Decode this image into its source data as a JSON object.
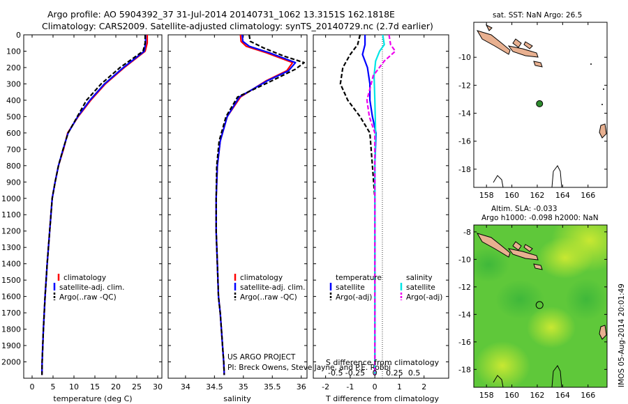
{
  "figure": {
    "title_line1": "Argo profile: AO 5904392_37 31-Jul-2014 20140731_1062 13.3151S 162.1818E",
    "title_line2": "Climatology: CARS2009. Satellite-adjusted climatology: synTS_20140729.nc (2.7d earlier)",
    "credit_line1": "US ARGO PROJECT",
    "credit_line2": "PI: Breck Owens, Steve Jayne, and P.E. Robbi",
    "timestamp": "IMOS 05-Aug-2014 20:01:49"
  },
  "colors": {
    "climatology": "#ff0000",
    "satellite": "#0000ff",
    "argo": "#000000",
    "sal_sat": "#00e5e5",
    "sal_argo": "#ee00ee",
    "land": "#e8b090",
    "float": "#2e8b2e"
  },
  "chart_data": [
    {
      "id": "temperature-profile",
      "type": "line",
      "xlabel": "temperature (deg C)",
      "ylabel": "",
      "xlim": [
        -2,
        31
      ],
      "ylim": [
        2100,
        0
      ],
      "xticks": [
        "0",
        "5",
        "10",
        "15",
        "20",
        "25",
        "30"
      ],
      "xtick_values": [
        0,
        5,
        10,
        15,
        20,
        25,
        30
      ],
      "yticks": [
        "0",
        "100",
        "200",
        "300",
        "400",
        "500",
        "600",
        "700",
        "800",
        "900",
        "1000",
        "1100",
        "1200",
        "1300",
        "1400",
        "1500",
        "1600",
        "1700",
        "1800",
        "1900",
        "2000"
      ],
      "ytick_values": [
        0,
        100,
        200,
        300,
        400,
        500,
        600,
        700,
        800,
        900,
        1000,
        1100,
        1200,
        1300,
        1400,
        1500,
        1600,
        1700,
        1800,
        1900,
        2000
      ],
      "legend": [
        "climatology",
        "satellite-adj. clim.",
        "Argo(..raw -QC)"
      ],
      "series": [
        {
          "name": "climatology",
          "style": "solid",
          "x": [
            27.5,
            27.5,
            27.0,
            22.0,
            17.5,
            14.0,
            11.0,
            8.5,
            7.5,
            6.3,
            5.5,
            4.8,
            4.2,
            3.6,
            3.1,
            2.7,
            2.4,
            2.35
          ],
          "y": [
            0,
            50,
            100,
            200,
            300,
            400,
            500,
            600,
            700,
            800,
            900,
            1000,
            1200,
            1400,
            1600,
            1800,
            2000,
            2080
          ]
        },
        {
          "name": "satellite",
          "style": "solid",
          "x": [
            27.1,
            27.1,
            26.8,
            21.8,
            17.3,
            13.8,
            10.9,
            8.6,
            7.4,
            6.3,
            5.5,
            4.8,
            4.2,
            3.6,
            3.1,
            2.7,
            2.4,
            2.35
          ],
          "y": [
            0,
            50,
            100,
            200,
            300,
            400,
            500,
            600,
            700,
            800,
            900,
            1000,
            1200,
            1400,
            1600,
            1800,
            2000,
            2080
          ]
        },
        {
          "name": "Argo",
          "style": "dashed",
          "x": [
            27.0,
            27.0,
            26.5,
            21.0,
            16.5,
            13.0,
            10.8,
            8.6,
            7.4,
            6.3,
            5.5,
            4.8,
            4.2,
            3.6,
            3.1,
            2.7,
            2.4,
            2.35
          ],
          "y": [
            0,
            50,
            100,
            200,
            300,
            400,
            500,
            600,
            700,
            800,
            900,
            1000,
            1200,
            1400,
            1600,
            1800,
            2000,
            2080
          ]
        }
      ]
    },
    {
      "id": "salinity-profile",
      "type": "line",
      "xlabel": "salinity",
      "xlim": [
        33.7,
        36.1
      ],
      "ylim": [
        2100,
        0
      ],
      "xticks": [
        "34",
        "34.5",
        "35",
        "35.5",
        "36"
      ],
      "xtick_values": [
        34,
        34.5,
        35,
        35.5,
        36
      ],
      "legend": [
        "climatology",
        "satellite-adj. clim.",
        "Argo(..raw -QC)"
      ],
      "series": [
        {
          "name": "climatology",
          "style": "solid",
          "x": [
            34.95,
            34.96,
            35.05,
            35.4,
            35.85,
            35.75,
            35.4,
            34.95,
            34.72,
            34.6,
            34.55,
            34.53,
            34.53,
            34.55,
            34.57,
            34.6,
            34.62,
            34.64,
            34.66,
            34.67
          ],
          "y": [
            0,
            40,
            70,
            110,
            170,
            220,
            280,
            380,
            500,
            650,
            800,
            1000,
            1200,
            1400,
            1600,
            1700,
            1800,
            1900,
            2000,
            2080
          ]
        },
        {
          "name": "satellite",
          "style": "solid",
          "x": [
            34.98,
            34.99,
            35.1,
            35.45,
            35.9,
            35.78,
            35.42,
            34.93,
            34.72,
            34.6,
            34.55,
            34.53,
            34.53,
            34.55,
            34.57,
            34.6,
            34.62,
            34.64,
            34.66,
            34.67
          ],
          "y": [
            0,
            40,
            70,
            110,
            170,
            220,
            280,
            380,
            500,
            650,
            800,
            1000,
            1200,
            1400,
            1600,
            1700,
            1800,
            1900,
            2000,
            2080
          ]
        },
        {
          "name": "Argo",
          "style": "dashed",
          "x": [
            35.1,
            35.12,
            35.35,
            35.7,
            36.05,
            35.9,
            35.5,
            34.9,
            34.7,
            34.58,
            34.54,
            34.53,
            34.53,
            34.55,
            34.57,
            34.6,
            34.62,
            34.64,
            34.66,
            34.67
          ],
          "y": [
            0,
            40,
            80,
            130,
            170,
            210,
            280,
            380,
            500,
            650,
            800,
            1000,
            1200,
            1400,
            1600,
            1700,
            1800,
            1900,
            2000,
            2080
          ]
        }
      ]
    },
    {
      "id": "difference-profile",
      "type": "line",
      "xlabel": "T difference from climatology",
      "xlabel_top": "S difference from climatology",
      "xlim": [
        -2.5,
        3.0
      ],
      "ylim": [
        2100,
        0
      ],
      "xticks": [
        "-2",
        "-1",
        "0",
        "1",
        "2"
      ],
      "xtick_values": [
        -2,
        -1,
        0,
        1,
        2
      ],
      "xticks_sal": [
        "-0.5",
        "-0.25",
        "0",
        "0.25",
        "0.5"
      ],
      "xtick_values_sal": [
        -0.5,
        -0.25,
        0,
        0.25,
        0.5
      ],
      "legend_temperature_title": "temperature",
      "legend_salinity_title": "salinity",
      "legend_temperature": [
        "satellite",
        "Argo(-adj)"
      ],
      "legend_salinity": [
        "satellite",
        "Argo(-adj)"
      ],
      "series": [
        {
          "name": "T satellite",
          "style": "solid",
          "x": [
            -0.4,
            -0.4,
            -0.5,
            -0.3,
            -0.2,
            -0.2,
            -0.1,
            0.05,
            0,
            0,
            0,
            0,
            0,
            0
          ],
          "y": [
            0,
            60,
            120,
            200,
            300,
            400,
            500,
            600,
            800,
            1000,
            1400,
            1800,
            2000,
            2080
          ]
        },
        {
          "name": "T Argo(-adj)",
          "style": "dashed",
          "x": [
            -0.6,
            -0.7,
            -1.0,
            -1.3,
            -1.4,
            -1.1,
            -0.6,
            -0.2,
            -0.1,
            0,
            0,
            0,
            0,
            0
          ],
          "y": [
            0,
            60,
            120,
            200,
            300,
            400,
            500,
            600,
            800,
            1000,
            1400,
            1800,
            2000,
            2080
          ]
        },
        {
          "name": "S satellite",
          "style": "solid",
          "x": [
            0.1,
            0.12,
            0.06,
            0.01,
            -0.01,
            0,
            0.01,
            0,
            0,
            0,
            0,
            0,
            0
          ],
          "y": [
            0,
            60,
            100,
            160,
            250,
            400,
            600,
            800,
            1000,
            1400,
            1800,
            2000,
            2080
          ]
        },
        {
          "name": "S Argo(-adj)",
          "style": "dashed",
          "x": [
            0.18,
            0.2,
            0.26,
            0.12,
            -0.02,
            -0.1,
            -0.07,
            0,
            0,
            0,
            0,
            0,
            0
          ],
          "y": [
            0,
            60,
            100,
            160,
            250,
            400,
            500,
            600,
            800,
            1400,
            1800,
            2000,
            2080
          ]
        }
      ]
    },
    {
      "id": "sst-map",
      "type": "map",
      "title": "sat. SST: NaN Argo: 26.5",
      "xlim": [
        157,
        167.5
      ],
      "ylim": [
        -19.3,
        -7.5
      ],
      "xticks": [
        "158",
        "160",
        "162",
        "164",
        "166"
      ],
      "xtick_values": [
        158,
        160,
        162,
        164,
        166
      ],
      "yticks": [
        "-10",
        "-12",
        "-14",
        "-16",
        "-18"
      ],
      "ytick_values": [
        -10,
        -12,
        -14,
        -16,
        -18
      ],
      "float_position": {
        "lon": 162.18,
        "lat": -13.32
      }
    },
    {
      "id": "sla-map",
      "type": "heatmap",
      "title_line1": "Altim. SLA: -0.033",
      "title_line2": "Argo h1000: -0.098 h2000: NaN",
      "xlim": [
        157,
        167.5
      ],
      "ylim": [
        -19.3,
        -7.5
      ],
      "xticks": [
        "158",
        "160",
        "162",
        "164",
        "166"
      ],
      "xtick_values": [
        158,
        160,
        162,
        164,
        166
      ],
      "yticks": [
        "-8",
        "-10",
        "-12",
        "-14",
        "-16",
        "-18"
      ],
      "ytick_values": [
        -8,
        -10,
        -12,
        -14,
        -16,
        -18
      ],
      "float_position": {
        "lon": 162.18,
        "lat": -13.32
      }
    }
  ]
}
